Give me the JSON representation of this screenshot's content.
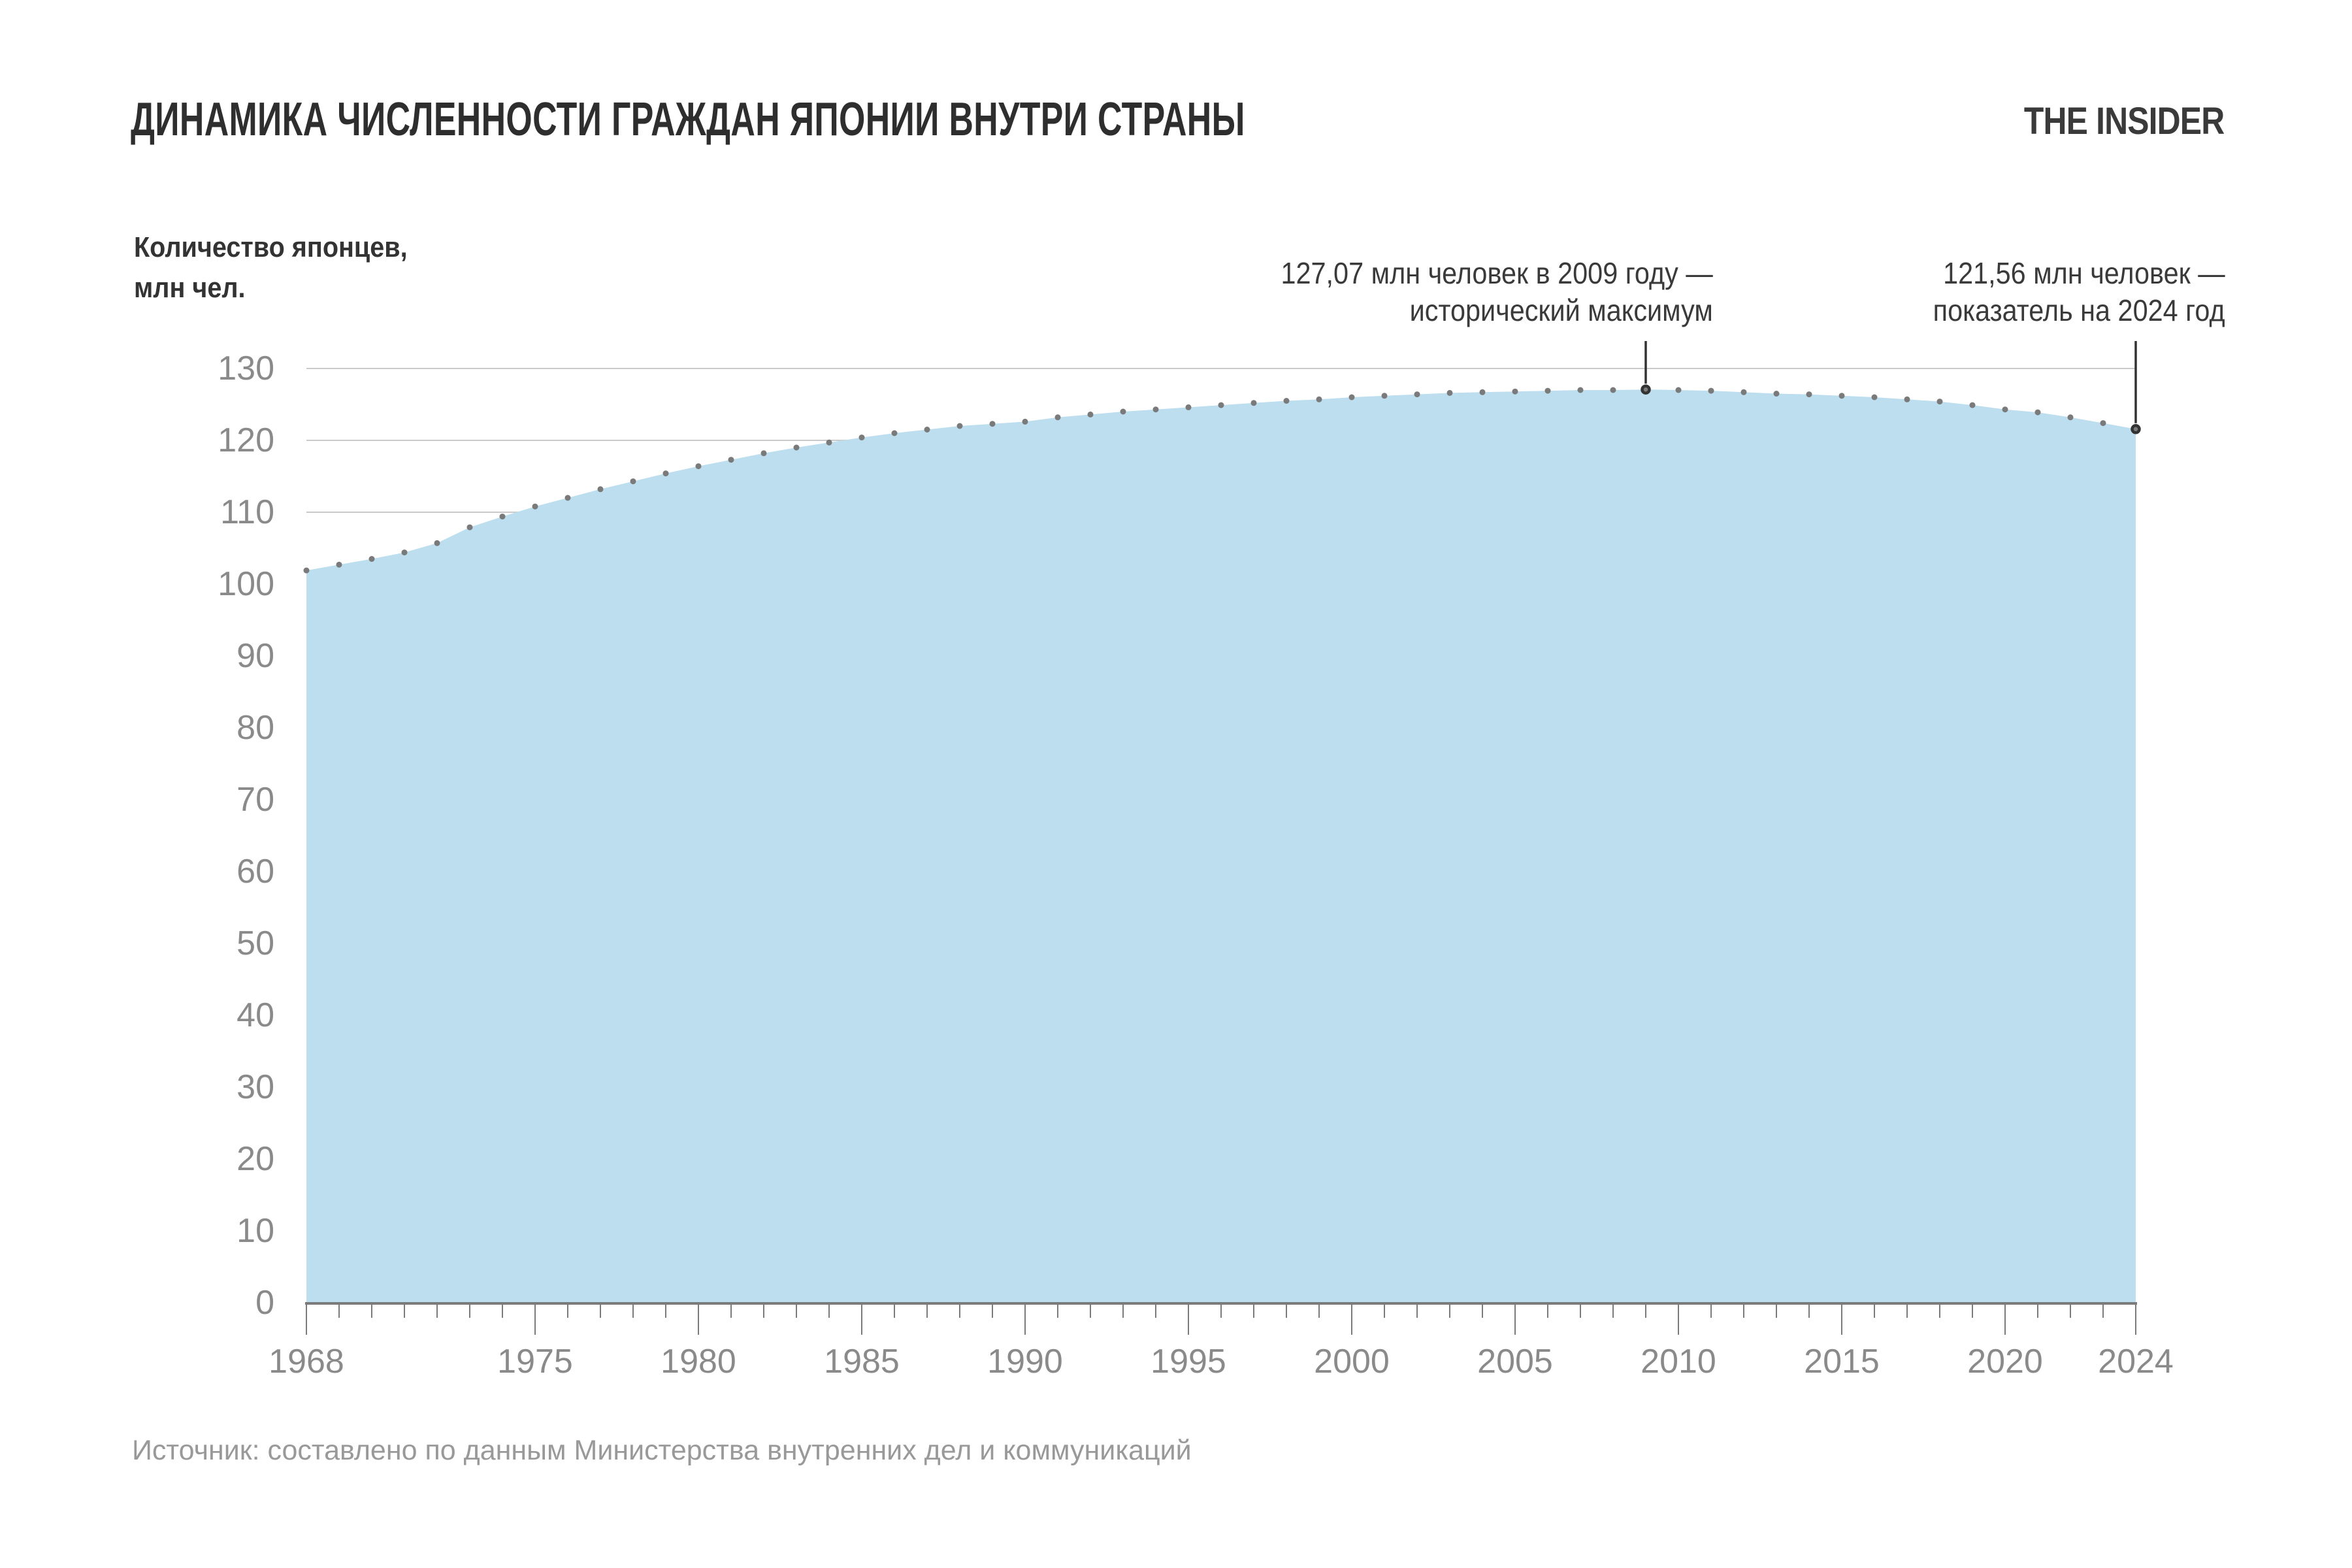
{
  "header": {
    "title": "ДИНАМИКА ЧИСЛЕННОСТИ ГРАЖДАН ЯПОНИИ ВНУТРИ СТРАНЫ",
    "logo": "THE INSIDER"
  },
  "y_axis_title": {
    "line1": "Количество японцев,",
    "line2": "млн чел."
  },
  "annotations": {
    "peak": {
      "line1": "127,07 млн человек в 2009 году —",
      "line2": "исторический максимум",
      "year": 2009,
      "value": 127.07
    },
    "latest": {
      "line1": "121,56 млн человек —",
      "line2": "показатель на 2024 год",
      "year": 2024,
      "value": 121.56
    }
  },
  "footer": {
    "source": "Источник: составлено по данным Министерства внутренних дел и коммуникаций"
  },
  "colors": {
    "area_fill": "#BCDEEF",
    "dot": "#7A7A7A",
    "marker_fill": "#7A7A7A",
    "marker_ring": "#333333",
    "callout_line": "#333333",
    "grid_line": "#CACACA",
    "axis_line": "#7B7B7B",
    "tick_label": "#8A8A8A",
    "title_text": "#2E2E2E",
    "annotation_text": "#3A3A3A",
    "source_text": "#999999"
  },
  "chart_data": {
    "type": "area",
    "title": "ДИНАМИКА ЧИСЛЕННОСТИ ГРАЖДАН ЯПОНИИ ВНУТРИ СТРАНЫ",
    "ylabel": "Количество японцев, млн чел.",
    "xlabel": "",
    "ylim": [
      0,
      130
    ],
    "xlim": [
      1968,
      2024
    ],
    "grid": "horizontal",
    "legend": "none",
    "x": [
      1968,
      1969,
      1970,
      1971,
      1972,
      1973,
      1974,
      1975,
      1976,
      1977,
      1978,
      1979,
      1980,
      1981,
      1982,
      1983,
      1984,
      1985,
      1986,
      1987,
      1988,
      1989,
      1990,
      1991,
      1992,
      1993,
      1994,
      1995,
      1996,
      1997,
      1998,
      1999,
      2000,
      2001,
      2002,
      2003,
      2004,
      2005,
      2006,
      2007,
      2008,
      2009,
      2010,
      2011,
      2012,
      2013,
      2014,
      2015,
      2016,
      2017,
      2018,
      2019,
      2020,
      2021,
      2022,
      2023,
      2024
    ],
    "values": [
      101.9,
      102.7,
      103.5,
      104.4,
      105.7,
      107.9,
      109.4,
      110.8,
      112.0,
      113.2,
      114.3,
      115.4,
      116.4,
      117.3,
      118.2,
      119.0,
      119.7,
      120.4,
      121.0,
      121.5,
      122.0,
      122.3,
      122.6,
      123.2,
      123.6,
      124.0,
      124.3,
      124.6,
      124.9,
      125.2,
      125.5,
      125.7,
      126.0,
      126.2,
      126.4,
      126.6,
      126.7,
      126.8,
      126.9,
      127.0,
      127.0,
      127.07,
      127.0,
      126.9,
      126.7,
      126.5,
      126.4,
      126.2,
      126.0,
      125.7,
      125.4,
      124.9,
      124.3,
      123.9,
      123.2,
      122.4,
      121.56
    ],
    "x_tick_labels": [
      "1968",
      "1975",
      "1980",
      "1985",
      "1990",
      "1995",
      "2000",
      "2005",
      "2010",
      "2015",
      "2020",
      "2024"
    ],
    "y_tick_labels": [
      "0",
      "10",
      "20",
      "30",
      "40",
      "50",
      "60",
      "70",
      "80",
      "90",
      "100",
      "110",
      "120",
      "130"
    ],
    "annotated_points": [
      {
        "year": 2009,
        "value": 127.07,
        "label": "127,07 млн человек в 2009 году — исторический максимум"
      },
      {
        "year": 2024,
        "value": 121.56,
        "label": "121,56 млн человек — показатель на 2024 год"
      }
    ]
  }
}
